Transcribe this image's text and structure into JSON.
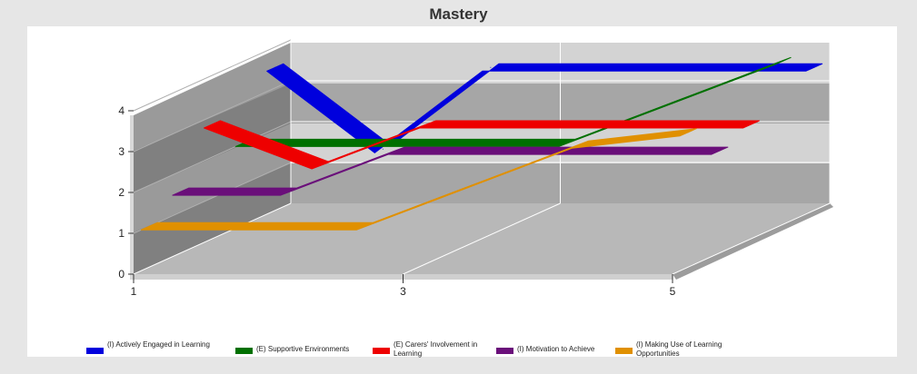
{
  "chart_data": {
    "type": "line",
    "title": "Mastery",
    "xlabel": "",
    "ylabel": "",
    "x_ticks": [
      "1",
      "3",
      "5"
    ],
    "y_ticks": [
      "0",
      "1",
      "2",
      "3",
      "4"
    ],
    "x": [
      1,
      2,
      3,
      4,
      5,
      6
    ],
    "ylim": [
      0,
      4
    ],
    "grid": true,
    "legend_position": "bottom",
    "series": [
      {
        "name": "(I) Actively Engaged in Learning",
        "color": "#0000dd",
        "values": [
          3.5,
          1.5,
          3.5,
          3.5,
          3.5,
          3.5
        ]
      },
      {
        "name": "(E) Supportive Environments",
        "color": "#007000",
        "values": [
          2.0,
          2.0,
          2.0,
          2.0,
          3.0,
          4.0
        ]
      },
      {
        "name": "(E) Carers' Involvement in Learning",
        "color": "#ee0000",
        "values": [
          2.8,
          1.8,
          2.8,
          2.8,
          2.8,
          2.8
        ]
      },
      {
        "name": "(I) Motivation to Achieve",
        "color": "#6a0f7a",
        "values": [
          1.5,
          1.5,
          2.5,
          2.5,
          2.5,
          2.5
        ]
      },
      {
        "name": "(I) Making Use of Learning Opportunities",
        "color": "#e09000",
        "values": [
          1.0,
          1.0,
          1.0,
          2.0,
          3.0,
          3.3
        ]
      }
    ]
  }
}
